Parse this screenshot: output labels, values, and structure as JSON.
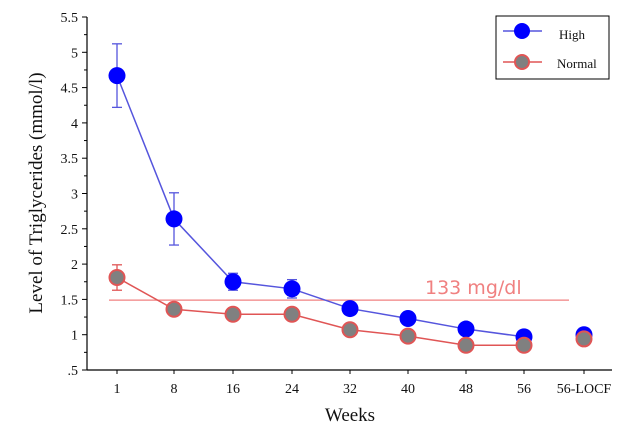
{
  "chart_data": {
    "type": "line",
    "title": "",
    "xlabel": "Weeks",
    "ylabel": "Level of Triglycerides (mmol/l)",
    "categories": [
      "1",
      "8",
      "16",
      "24",
      "32",
      "40",
      "48",
      "56",
      "56-LOCF"
    ],
    "ylim": [
      0.5,
      5.5
    ],
    "yticks": [
      ".5",
      "1",
      "1.5",
      "2",
      "2.5",
      "3",
      "3.5",
      "4",
      "4.5",
      "5",
      "5.5"
    ],
    "ytick_values": [
      0.5,
      1,
      1.5,
      2,
      2.5,
      3,
      3.5,
      4,
      4.5,
      5,
      5.5
    ],
    "grid": false,
    "legend_position": "top-right",
    "series": [
      {
        "name": "High",
        "color": "#0000ff",
        "line_color": "#5555dd",
        "values": [
          4.67,
          2.64,
          1.75,
          1.65,
          1.37,
          1.23,
          1.08,
          0.97,
          1.0
        ],
        "error": [
          0.45,
          0.37,
          0.12,
          0.13,
          null,
          null,
          null,
          null,
          null
        ],
        "connected": [
          true,
          true,
          true,
          true,
          true,
          true,
          true,
          true,
          false
        ]
      },
      {
        "name": "Normal",
        "color": "#808080",
        "line_color": "#e05555",
        "values": [
          1.81,
          1.36,
          1.29,
          1.29,
          1.07,
          0.98,
          0.85,
          0.85,
          0.94
        ],
        "error": [
          0.18,
          null,
          null,
          null,
          null,
          null,
          null,
          null,
          null
        ],
        "connected": [
          true,
          true,
          true,
          true,
          true,
          true,
          true,
          true,
          false
        ]
      }
    ],
    "reference_line": {
      "value": 1.49,
      "label": "133 mg/dl",
      "color": "#f08080"
    }
  }
}
